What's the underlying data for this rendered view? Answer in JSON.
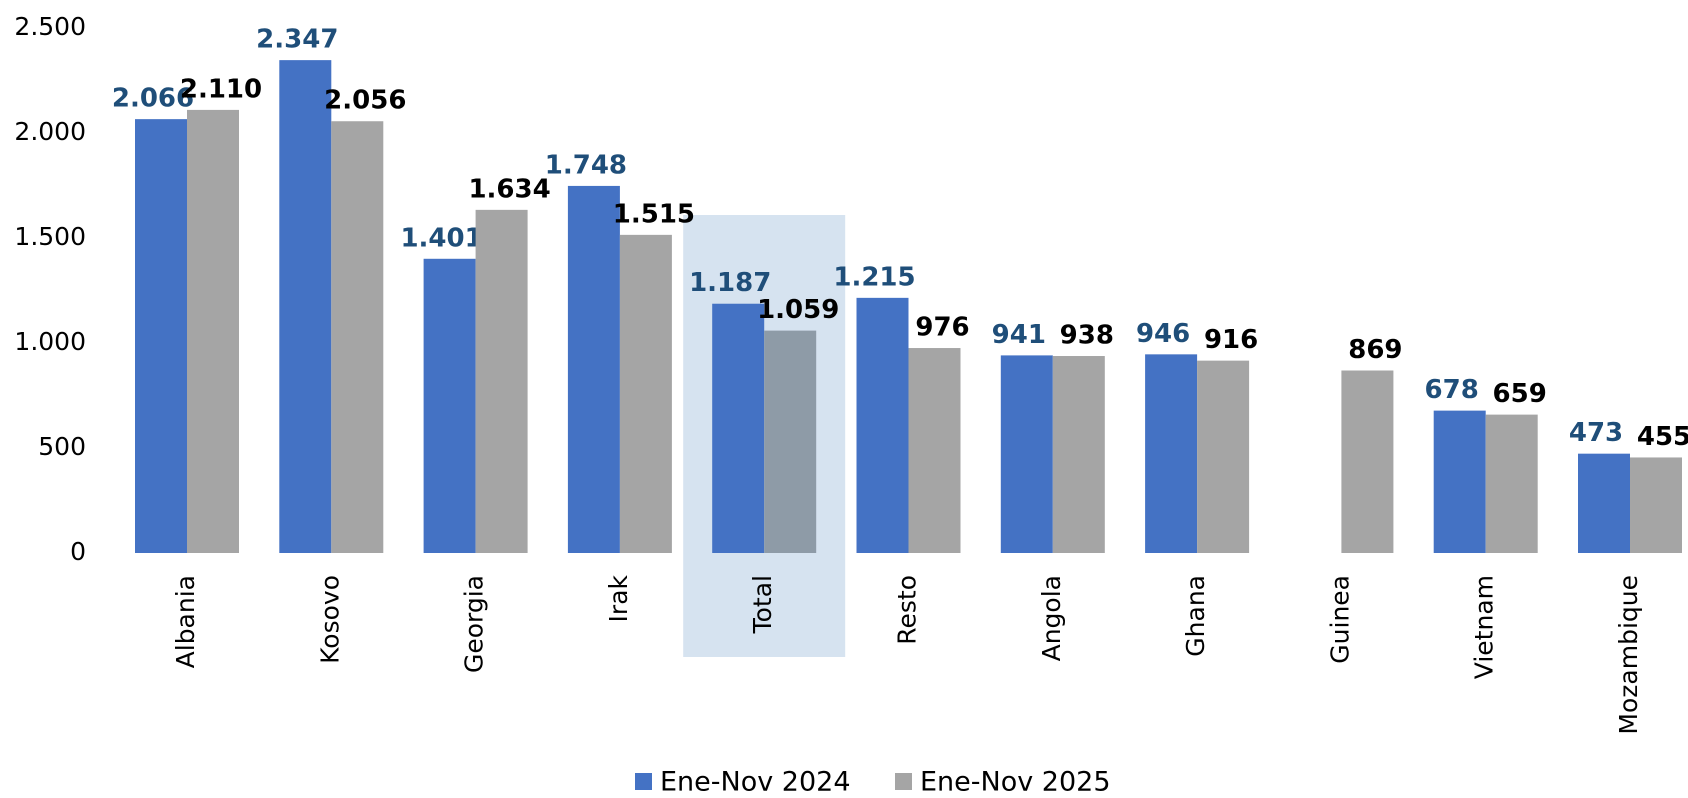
{
  "chart_data": {
    "type": "bar",
    "categories": [
      "Albania",
      "Kosovo",
      "Georgia",
      "Irak",
      "Total",
      "Resto",
      "Angola",
      "Ghana",
      "Guinea",
      "Vietnam",
      "Mozambique"
    ],
    "series": [
      {
        "name": "Ene-Nov 2024",
        "color": "#4472c4",
        "label_color": "#1f4e79",
        "values": [
          2066,
          2347,
          1401,
          1748,
          1187,
          1215,
          941,
          946,
          null,
          678,
          473
        ],
        "value_labels": [
          "2.066",
          "2.347",
          "1.401",
          "1.748",
          "1.187",
          "1.215",
          "941",
          "946",
          null,
          "678",
          "473"
        ]
      },
      {
        "name": "Ene-Nov 2025",
        "color": "#a5a5a5",
        "label_color": "#000000",
        "highlight_color": "#8e9ba7",
        "values": [
          2110,
          2056,
          1634,
          1515,
          1059,
          976,
          938,
          916,
          869,
          659,
          455
        ],
        "value_labels": [
          "2.110",
          "2.056",
          "1.634",
          "1.515",
          "1.059",
          "976",
          "938",
          "916",
          "869",
          "659",
          "455"
        ]
      }
    ],
    "highlight": {
      "category": "Total",
      "color": "#d6e3f0"
    },
    "ylim": [
      0,
      2500
    ],
    "yticks": [
      0,
      500,
      {
        "value": 1000,
        "label": "1.000"
      },
      {
        "value": 1500,
        "label": "1.500"
      },
      {
        "value": 2000,
        "label": "2.000"
      },
      {
        "value": 2500,
        "label": "2.500"
      }
    ],
    "grid": false,
    "legend": "bottom"
  }
}
